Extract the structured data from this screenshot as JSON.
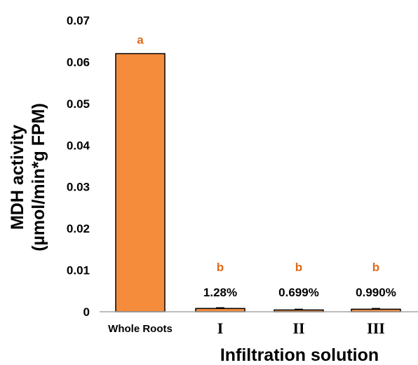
{
  "chart_data": {
    "type": "bar",
    "categories": [
      "Whole Roots",
      "I",
      "II",
      "III"
    ],
    "values": [
      0.062,
      0.00079,
      0.00043,
      0.00061
    ],
    "significance_letters": [
      "a",
      "b",
      "b",
      "b"
    ],
    "percent_labels": [
      "",
      "1.28%",
      "0.699%",
      "0.990%"
    ],
    "xlabel": "Infiltration solution",
    "ylabel_line1": "MDH activity",
    "ylabel_line2": "(µmol/min*g FPM)",
    "ylim": [
      0,
      0.07
    ],
    "yticks": [
      "0",
      "0.01",
      "0.02",
      "0.03",
      "0.04",
      "0.05",
      "0.06",
      "0.07"
    ],
    "grid": false,
    "colors": {
      "bar_fill": "#f58c3c",
      "bar_stroke": "#000000",
      "letters": "#e06a1a",
      "axis": "#a6a6a6"
    }
  }
}
